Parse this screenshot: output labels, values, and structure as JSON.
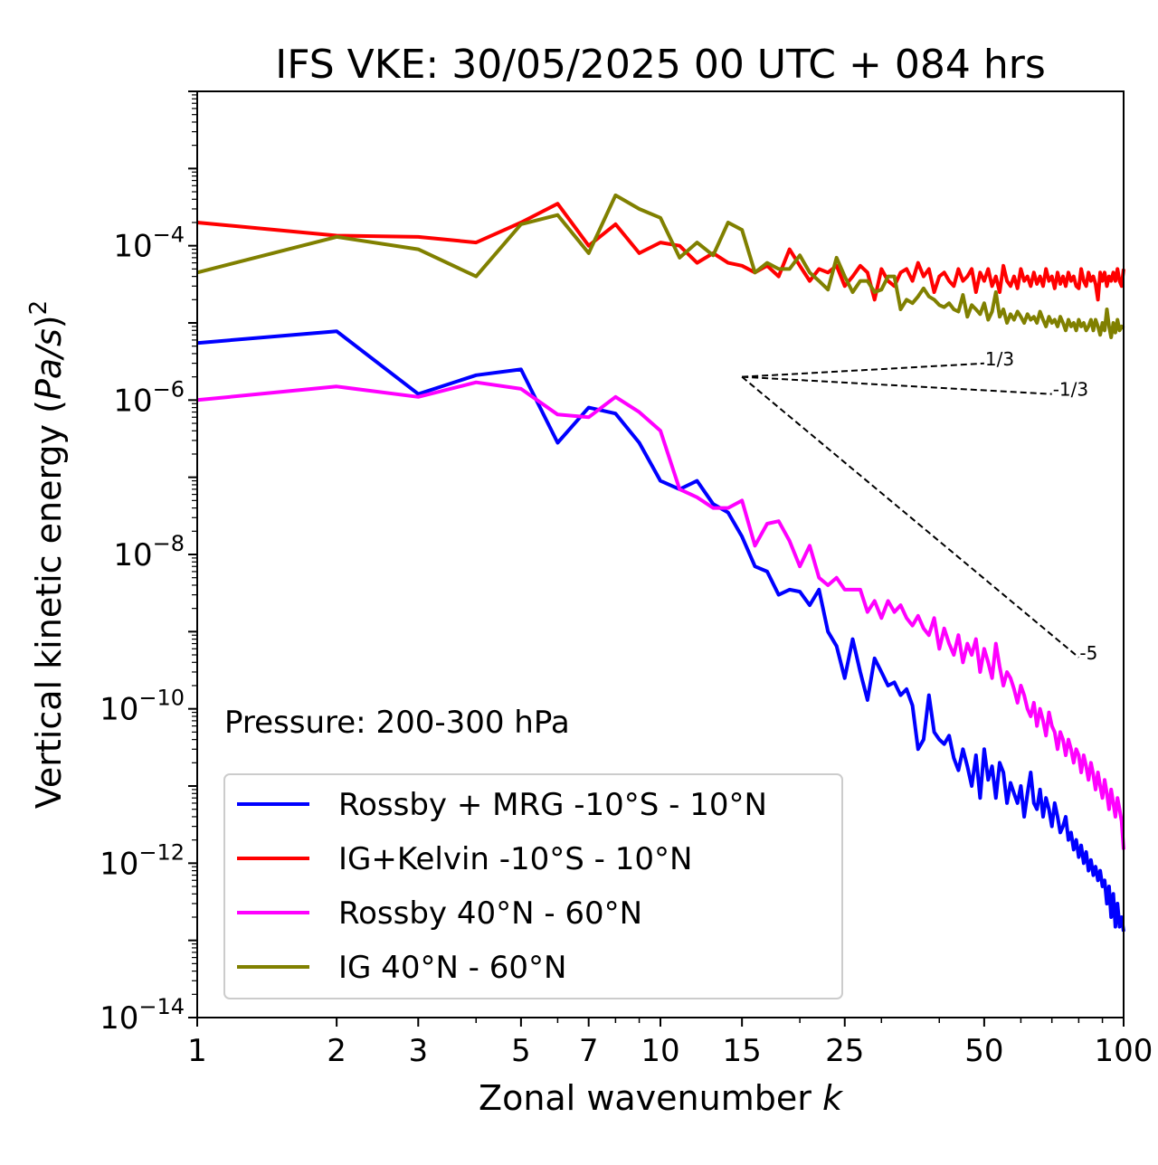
{
  "chart_data": {
    "type": "line",
    "title": "IFS VKE: 30/05/2025 00 UTC + 084 hrs",
    "xlabel": "Zonal wavenumber k",
    "xlabel_main": "Zonal wavenumber ",
    "xlabel_var": "k",
    "ylabel": "Vertical kinetic energy (Pa/s)^2",
    "ylabel_main": "Vertical kinetic energy (",
    "ylabel_var": "Pa/s",
    "ylabel_close": ")",
    "ylabel_sup": "2",
    "x_scale": "log",
    "y_scale": "log",
    "xlim": [
      1,
      100
    ],
    "ylim": [
      1e-14,
      0.01
    ],
    "x_ticks": [
      1,
      2,
      3,
      5,
      7,
      10,
      15,
      25,
      50,
      100
    ],
    "x_tick_labels": [
      "1",
      "2",
      "3",
      "5",
      "7",
      "10",
      "15",
      "25",
      "50",
      "100"
    ],
    "y_ticks": [
      -14,
      -12,
      -10,
      -8,
      -6,
      -4
    ],
    "y_tick_base": "10",
    "y_tick_exps": [
      "−14",
      "−12",
      "−10",
      "−8",
      "−6",
      "−4"
    ],
    "grid": false,
    "annotation": "Pressure: 200-300 hPa",
    "legend_position": "lower-left",
    "reference_slopes": [
      {
        "label": "1/3",
        "x0": 15,
        "y0": 2e-06,
        "x1": 50,
        "slope": 0.3333
      },
      {
        "label": "-1/3",
        "x0": 15,
        "y0": 2e-06,
        "x1": 70,
        "slope": -0.3333
      },
      {
        "label": "-5",
        "x0": 15,
        "y0": 2e-06,
        "x1": 80,
        "slope": -5
      }
    ],
    "series": [
      {
        "name": "Rossby + MRG -10°S - 10°N",
        "color": "#0000ff",
        "x": [
          1,
          2,
          3,
          4,
          5,
          6,
          7,
          8,
          9,
          10,
          11,
          12,
          13,
          14,
          15,
          16,
          17,
          18,
          19,
          20,
          21,
          22,
          23,
          24,
          25,
          26,
          27,
          28,
          29,
          30,
          31,
          32,
          33,
          34,
          35,
          36,
          37,
          38,
          39,
          40,
          41,
          42,
          43,
          44,
          45,
          46,
          47,
          48,
          49,
          50,
          51,
          52,
          53,
          54,
          55,
          56,
          57,
          58,
          59,
          60,
          61,
          62,
          63,
          64,
          65,
          66,
          67,
          68,
          69,
          70,
          71,
          72,
          73,
          74,
          75,
          76,
          77,
          78,
          79,
          80,
          81,
          82,
          83,
          84,
          85,
          86,
          87,
          88,
          89,
          90,
          91,
          92,
          93,
          94,
          95,
          96,
          97,
          98,
          99,
          100
        ],
        "y": [
          5.5e-06,
          7.8e-06,
          1.2e-06,
          2.1e-06,
          2.5e-06,
          2.8e-07,
          8e-07,
          6.7e-07,
          2.8e-07,
          9e-08,
          7e-08,
          9e-08,
          4.5e-08,
          3.5e-08,
          1.7e-08,
          7e-09,
          6e-09,
          3e-09,
          3.5e-09,
          3.3e-09,
          2.2e-09,
          3.5e-09,
          1e-09,
          6.5e-10,
          2.5e-10,
          8e-10,
          3e-10,
          1.3e-10,
          4.5e-10,
          3e-10,
          2e-10,
          2.2e-10,
          1.5e-10,
          1.8e-10,
          1.1e-10,
          3e-11,
          4e-11,
          1.5e-10,
          5e-11,
          4e-11,
          3.5e-11,
          4.5e-11,
          2.3e-11,
          1.6e-11,
          3e-11,
          1.8e-11,
          1e-11,
          2.5e-11,
          7e-12,
          3e-11,
          1.2e-11,
          1.8e-11,
          7e-12,
          2e-11,
          1.5e-11,
          6e-12,
          1.1e-11,
          8e-12,
          6e-12,
          1e-11,
          4e-12,
          8e-12,
          1.5e-11,
          6e-12,
          5e-12,
          9e-12,
          4e-12,
          7e-12,
          5e-12,
          3e-12,
          6e-12,
          4e-12,
          2.5e-12,
          3e-12,
          4e-12,
          2e-12,
          2.5e-12,
          1.5e-12,
          2e-12,
          1.2e-12,
          1.7e-12,
          1e-12,
          1.4e-12,
          8e-13,
          1.1e-12,
          7e-13,
          9e-13,
          6e-13,
          8e-13,
          5e-13,
          6e-13,
          3e-13,
          5e-13,
          2e-13,
          4e-13,
          1.5e-13,
          3e-13,
          1.5e-13,
          2e-13,
          1.3e-13
        ]
      },
      {
        "name": "IG+Kelvin -10°S - 10°N",
        "color": "#ff0000",
        "x": [
          1,
          2,
          3,
          4,
          5,
          6,
          7,
          8,
          9,
          10,
          11,
          12,
          13,
          14,
          15,
          16,
          17,
          18,
          19,
          20,
          21,
          22,
          23,
          24,
          25,
          26,
          27,
          28,
          29,
          30,
          31,
          32,
          33,
          34,
          35,
          36,
          37,
          38,
          39,
          40,
          41,
          42,
          43,
          44,
          45,
          46,
          47,
          48,
          49,
          50,
          51,
          52,
          53,
          54,
          55,
          56,
          57,
          58,
          59,
          60,
          61,
          62,
          63,
          64,
          65,
          66,
          67,
          68,
          69,
          70,
          71,
          72,
          73,
          74,
          75,
          76,
          77,
          78,
          79,
          80,
          81,
          82,
          83,
          84,
          85,
          86,
          87,
          88,
          89,
          90,
          91,
          92,
          93,
          94,
          95,
          96,
          97,
          98,
          99,
          100
        ],
        "y": [
          0.0002,
          0.000135,
          0.00013,
          0.00011,
          0.0002,
          0.00035,
          0.0001,
          0.00019,
          8e-05,
          0.00011,
          0.0001,
          6e-05,
          8e-05,
          6e-05,
          5.5e-05,
          4.5e-05,
          5.5e-05,
          4e-05,
          9e-05,
          5.5e-05,
          3.5e-05,
          5e-05,
          4.5e-05,
          5.5e-05,
          3e-05,
          4e-05,
          5.5e-05,
          4.5e-05,
          2e-05,
          5e-05,
          3.5e-05,
          3e-05,
          4.5e-05,
          5e-05,
          3.5e-05,
          6e-05,
          4e-05,
          5e-05,
          2.5e-05,
          4e-05,
          4.5e-05,
          3.5e-05,
          3e-05,
          5e-05,
          3.5e-05,
          4e-05,
          5e-05,
          2.5e-05,
          4.5e-05,
          3.5e-05,
          5e-05,
          3e-05,
          4e-05,
          2.5e-05,
          5.5e-05,
          3.5e-05,
          3e-05,
          4e-05,
          2.8e-05,
          5e-05,
          3.5e-05,
          4e-05,
          3e-05,
          4.5e-05,
          3.2e-05,
          4e-05,
          3e-05,
          5e-05,
          3.5e-05,
          4e-05,
          2.8e-05,
          4.5e-05,
          3.2e-05,
          4e-05,
          3e-05,
          4.5e-05,
          3.5e-05,
          4e-05,
          3e-05,
          2.8e-05,
          5e-05,
          3.5e-05,
          3e-05,
          4.5e-05,
          3.5e-05,
          4e-05,
          3.2e-05,
          2e-05,
          4.5e-05,
          3.5e-05,
          4.5e-05,
          3e-05,
          4e-05,
          3.5e-05,
          4.5e-05,
          3.5e-05,
          5e-05,
          3.5e-05,
          3e-05,
          5e-05
        ]
      },
      {
        "name": "Rossby 40°N - 60°N",
        "color": "#ff00ff",
        "x": [
          1,
          2,
          3,
          4,
          5,
          6,
          7,
          8,
          9,
          10,
          11,
          12,
          13,
          14,
          15,
          16,
          17,
          18,
          19,
          20,
          21,
          22,
          23,
          24,
          25,
          26,
          27,
          28,
          29,
          30,
          31,
          32,
          33,
          34,
          35,
          36,
          37,
          38,
          39,
          40,
          41,
          42,
          43,
          44,
          45,
          46,
          47,
          48,
          49,
          50,
          51,
          52,
          53,
          54,
          55,
          56,
          57,
          58,
          59,
          60,
          61,
          62,
          63,
          64,
          65,
          66,
          67,
          68,
          69,
          70,
          71,
          72,
          73,
          74,
          75,
          76,
          77,
          78,
          79,
          80,
          81,
          82,
          83,
          84,
          85,
          86,
          87,
          88,
          89,
          90,
          91,
          92,
          93,
          94,
          95,
          96,
          97,
          98,
          99,
          100
        ],
        "y": [
          1e-06,
          1.5e-06,
          1.1e-06,
          1.7e-06,
          1.4e-06,
          6.5e-07,
          6e-07,
          1.1e-06,
          7e-07,
          4e-07,
          7e-08,
          5.5e-08,
          4e-08,
          4e-08,
          5e-08,
          1.3e-08,
          2.5e-08,
          2.7e-08,
          1.5e-08,
          7e-09,
          1.3e-08,
          5e-09,
          4e-09,
          5e-09,
          3.5e-09,
          3.5e-09,
          3.5e-09,
          1.8e-09,
          2.5e-09,
          1.5e-09,
          2.5e-09,
          1.8e-09,
          2.2e-09,
          1.5e-09,
          1.2e-09,
          1.6e-09,
          1.1e-09,
          9e-10,
          1.5e-09,
          6e-10,
          1.1e-09,
          7e-10,
          5e-10,
          9e-10,
          4e-10,
          7e-10,
          5e-10,
          8e-10,
          3e-10,
          6e-10,
          4e-10,
          2.5e-10,
          7e-10,
          3.5e-10,
          2e-10,
          3e-10,
          2.5e-10,
          1.8e-10,
          1.2e-10,
          2e-10,
          1.5e-10,
          1e-10,
          8e-11,
          1.2e-10,
          6e-11,
          1e-10,
          7e-11,
          4.5e-11,
          9e-11,
          6e-11,
          5e-11,
          3e-11,
          5e-11,
          4e-11,
          2.5e-11,
          4e-11,
          3e-11,
          2e-11,
          3e-11,
          2.5e-11,
          1.5e-11,
          2.5e-11,
          1.8e-11,
          1.2e-11,
          2e-11,
          1.4e-11,
          9e-12,
          1.5e-11,
          1e-11,
          7e-12,
          1.2e-11,
          8e-12,
          5e-12,
          9e-12,
          6e-12,
          4e-12,
          7e-12,
          5e-12,
          3.5e-12,
          1.5e-12
        ]
      },
      {
        "name": "IG 40°N - 60°N",
        "color": "#808000",
        "x": [
          1,
          2,
          3,
          4,
          5,
          6,
          7,
          8,
          9,
          10,
          11,
          12,
          13,
          14,
          15,
          16,
          17,
          18,
          19,
          20,
          21,
          22,
          23,
          24,
          25,
          26,
          27,
          28,
          29,
          30,
          31,
          32,
          33,
          34,
          35,
          36,
          37,
          38,
          39,
          40,
          41,
          42,
          43,
          44,
          45,
          46,
          47,
          48,
          49,
          50,
          51,
          52,
          53,
          54,
          55,
          56,
          57,
          58,
          59,
          60,
          61,
          62,
          63,
          64,
          65,
          66,
          67,
          68,
          69,
          70,
          71,
          72,
          73,
          74,
          75,
          76,
          77,
          78,
          79,
          80,
          81,
          82,
          83,
          84,
          85,
          86,
          87,
          88,
          89,
          90,
          91,
          92,
          93,
          94,
          95,
          96,
          97,
          98,
          99,
          100
        ],
        "y": [
          4.5e-05,
          0.00013,
          9e-05,
          4e-05,
          0.00019,
          0.00025,
          8e-05,
          0.00045,
          0.0003,
          0.00023,
          7e-05,
          0.00011,
          7.5e-05,
          0.0002,
          0.00016,
          4.5e-05,
          6e-05,
          5e-05,
          5e-05,
          7.5e-05,
          4.5e-05,
          3.5e-05,
          2.7e-05,
          7e-05,
          4e-05,
          2.5e-05,
          3.5e-05,
          3.5e-05,
          2.5e-05,
          2.7e-05,
          4e-05,
          4e-05,
          1.5e-05,
          2e-05,
          1.8e-05,
          2.2e-05,
          2.8e-05,
          2.2e-05,
          2e-05,
          1.7e-05,
          1.6e-05,
          1.8e-05,
          1.5e-05,
          1.4e-05,
          2.3e-05,
          1.2e-05,
          1.7e-05,
          1.5e-05,
          1.3e-05,
          1.8e-05,
          1.1e-05,
          1.4e-05,
          2.5e-05,
          1.2e-05,
          1.5e-05,
          1e-05,
          1.3e-05,
          1.1e-05,
          1.4e-05,
          1.2e-05,
          1e-05,
          1.3e-05,
          1.1e-05,
          1.2e-05,
          1e-05,
          1.4e-05,
          1.1e-05,
          9e-06,
          1.2e-05,
          1e-05,
          1.1e-05,
          9e-06,
          1.2e-05,
          1e-05,
          8e-06,
          1.1e-05,
          9e-06,
          1e-05,
          8e-06,
          1.1e-05,
          9e-06,
          1e-05,
          8e-06,
          9e-06,
          1.1e-05,
          8e-06,
          1.1e-05,
          9e-06,
          7e-06,
          1e-05,
          8e-06,
          1.5e-05,
          9e-06,
          6.5e-06,
          1e-05,
          7.5e-06,
          1.1e-05,
          8e-06,
          9e-06,
          8.5e-06
        ]
      }
    ]
  }
}
